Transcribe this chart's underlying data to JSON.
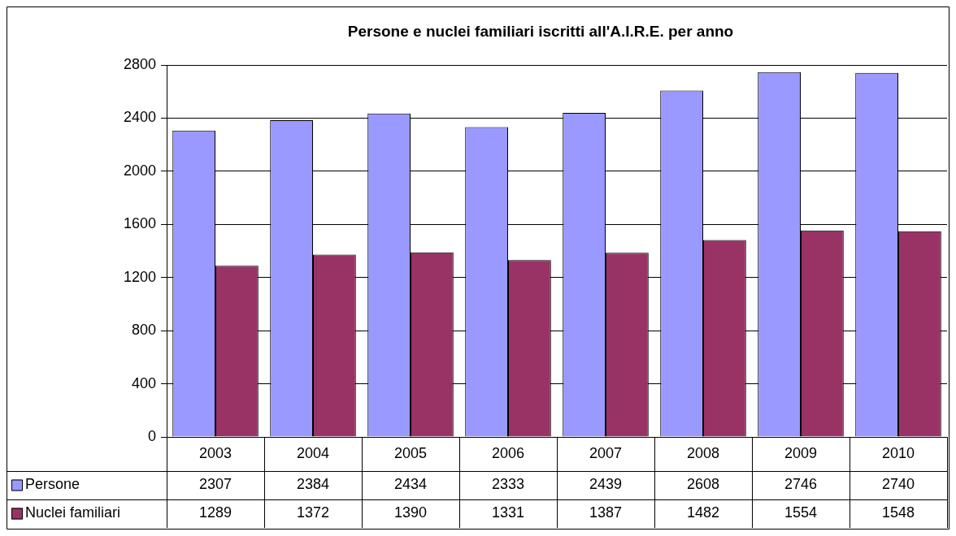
{
  "chart_data": {
    "type": "bar",
    "title": "Persone e nuclei familiari iscritti all'A.I.R.E. per anno",
    "categories": [
      "2003",
      "2004",
      "2005",
      "2006",
      "2007",
      "2008",
      "2009",
      "2010"
    ],
    "series": [
      {
        "name": "Persone",
        "color": "#9999ff",
        "values": [
          2307,
          2384,
          2434,
          2333,
          2439,
          2608,
          2746,
          2740
        ]
      },
      {
        "name": "Nuclei familiari",
        "color": "#993366",
        "values": [
          1289,
          1372,
          1390,
          1331,
          1387,
          1482,
          1554,
          1548
        ]
      }
    ],
    "ylim": [
      0,
      2800
    ],
    "yticks": [
      0,
      400,
      800,
      1200,
      1600,
      2000,
      2400,
      2800
    ],
    "grid": "y",
    "legend": "bottom left",
    "data_labels": true
  }
}
